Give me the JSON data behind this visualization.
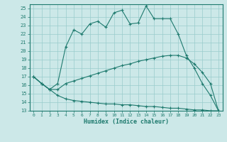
{
  "xlabel": "Humidex (Indice chaleur)",
  "xlim": [
    -0.5,
    23.5
  ],
  "ylim": [
    13,
    25.5
  ],
  "yticks": [
    13,
    14,
    15,
    16,
    17,
    18,
    19,
    20,
    21,
    22,
    23,
    24,
    25
  ],
  "xticks": [
    0,
    1,
    2,
    3,
    4,
    5,
    6,
    7,
    8,
    9,
    10,
    11,
    12,
    13,
    14,
    15,
    16,
    17,
    18,
    19,
    20,
    21,
    22,
    23
  ],
  "line_color": "#1e7a6e",
  "bg_color": "#cce8e8",
  "grid_color": "#99cccc",
  "line1_x": [
    0,
    1,
    2,
    3,
    4,
    5,
    6,
    7,
    8,
    9,
    10,
    11,
    12,
    13,
    14,
    15,
    16,
    17,
    18,
    19,
    20,
    21,
    22,
    23
  ],
  "line1_y": [
    17.0,
    16.2,
    15.5,
    16.2,
    20.5,
    22.5,
    22.0,
    23.2,
    23.5,
    22.8,
    24.5,
    24.8,
    23.2,
    23.3,
    25.3,
    23.8,
    23.8,
    23.8,
    22.0,
    19.5,
    18.0,
    16.2,
    14.8,
    13.0
  ],
  "line2_x": [
    0,
    1,
    2,
    3,
    4,
    5,
    6,
    7,
    8,
    9,
    10,
    11,
    12,
    13,
    14,
    15,
    16,
    17,
    18,
    19,
    20,
    21,
    22,
    23
  ],
  "line2_y": [
    17.0,
    16.2,
    15.5,
    15.5,
    16.2,
    16.5,
    16.8,
    17.1,
    17.4,
    17.7,
    18.0,
    18.3,
    18.5,
    18.8,
    19.0,
    19.2,
    19.4,
    19.5,
    19.5,
    19.2,
    18.5,
    17.5,
    16.2,
    13.0
  ],
  "line3_x": [
    0,
    1,
    2,
    3,
    4,
    5,
    6,
    7,
    8,
    9,
    10,
    11,
    12,
    13,
    14,
    15,
    16,
    17,
    18,
    19,
    20,
    21,
    22,
    23
  ],
  "line3_y": [
    17.0,
    16.2,
    15.5,
    14.8,
    14.4,
    14.2,
    14.1,
    14.0,
    13.9,
    13.8,
    13.8,
    13.7,
    13.7,
    13.6,
    13.5,
    13.5,
    13.4,
    13.3,
    13.3,
    13.2,
    13.1,
    13.1,
    13.0,
    13.0
  ]
}
